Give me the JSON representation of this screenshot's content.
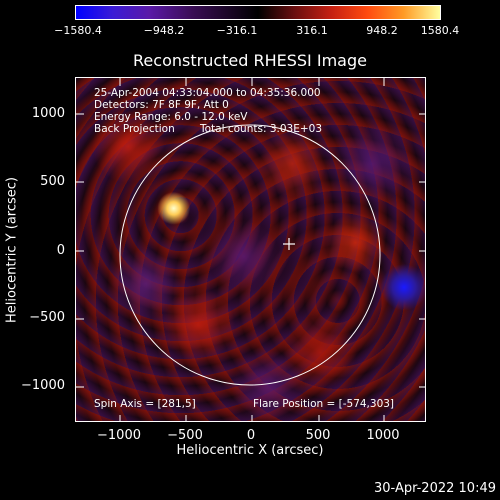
{
  "colorbar": {
    "ticks": [
      "−1580.4",
      "−948.2",
      "−316.1",
      "316.1",
      "948.2",
      "1580.4"
    ],
    "colors": [
      "#0000ff",
      "#5a1aa8",
      "#000000",
      "#c42012",
      "#ff9a25",
      "#ffff9f"
    ]
  },
  "title": "Reconstructed RHESSI Image",
  "info": {
    "time_range": "25-Apr-2004 04:33:04.000 to 04:35:36.000",
    "detectors": "Detectors: 7F 8F 9F, Att 0",
    "energy": "Energy Range: 6.0 - 12.0 keV",
    "method": "Back Projection",
    "counts": "Total counts: 3.03E+03",
    "spin_axis": "Spin Axis = [281,5]",
    "flare_position": "Flare Position = [-574,303]"
  },
  "axes": {
    "x_label": "Heliocentric X (arcsec)",
    "y_label": "Heliocentric Y (arcsec)",
    "x_ticks": [
      "−1000",
      "−500",
      "0",
      "500",
      "1000"
    ],
    "y_ticks": [
      "1000",
      "500",
      "0",
      "−500",
      "−1000"
    ]
  },
  "timestamp": "30-Apr-2022 10:49"
}
